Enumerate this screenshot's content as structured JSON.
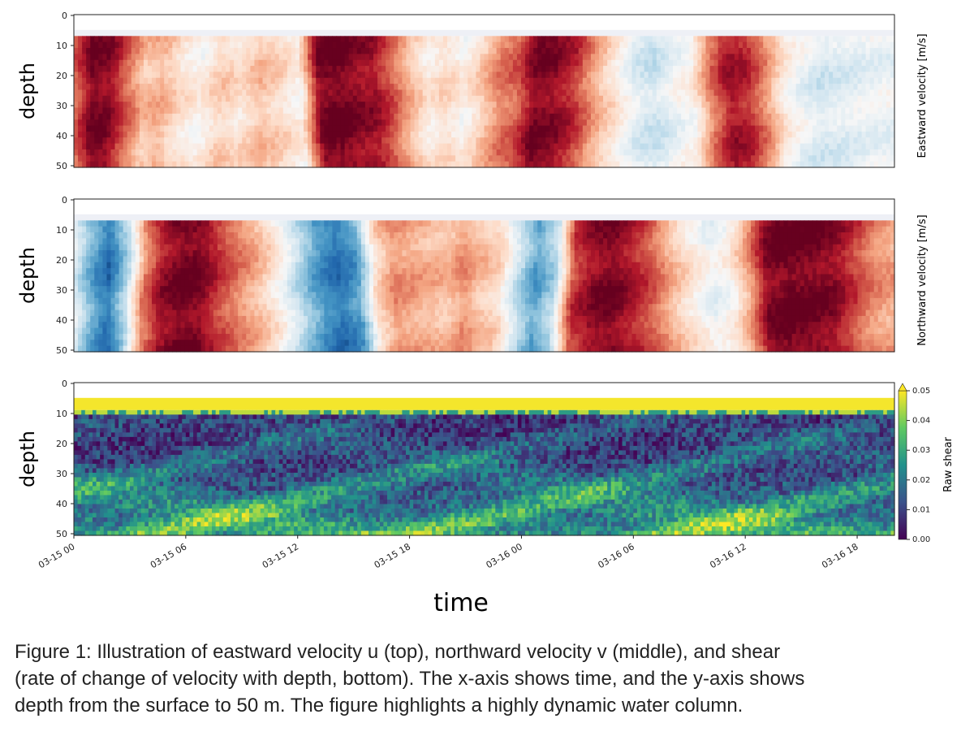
{
  "chart_data": [
    {
      "type": "heatmap",
      "panel": "top",
      "ylabel": "depth",
      "colorbar_label": "Eastward velocity [m/s]",
      "colormap": "RdBu_r",
      "yticks": [
        0,
        10,
        20,
        30,
        40,
        50
      ],
      "ylim": [
        0,
        50
      ],
      "data_depth_range": [
        7,
        51
      ],
      "x_range_hours": [
        0,
        44
      ],
      "color_scale": [
        -1,
        1
      ],
      "time_profile": [
        [
          0,
          0.55
        ],
        [
          1,
          0.95
        ],
        [
          2,
          0.92
        ],
        [
          3,
          0.6
        ],
        [
          4,
          0.3
        ],
        [
          5,
          0.35
        ],
        [
          6,
          0.15
        ],
        [
          7,
          0.05
        ],
        [
          8,
          0.25
        ],
        [
          9,
          0.15
        ],
        [
          10,
          0.3
        ],
        [
          11,
          0.2
        ],
        [
          12,
          0.05
        ],
        [
          13,
          0.95
        ],
        [
          14,
          0.98
        ],
        [
          15,
          0.9
        ],
        [
          16,
          0.85
        ],
        [
          17,
          0.6
        ],
        [
          18,
          0.3
        ],
        [
          19,
          0.1
        ],
        [
          20,
          0.2
        ],
        [
          21,
          0.05
        ],
        [
          22,
          0.25
        ],
        [
          23,
          0.5
        ],
        [
          24,
          0.6
        ],
        [
          25,
          0.95
        ],
        [
          26,
          0.9
        ],
        [
          27,
          0.75
        ],
        [
          28,
          0.4
        ],
        [
          29,
          0.15
        ],
        [
          30,
          -0.1
        ],
        [
          31,
          -0.2
        ],
        [
          32,
          -0.05
        ],
        [
          33,
          0.05
        ],
        [
          34,
          0.55
        ],
        [
          35,
          0.85
        ],
        [
          36,
          0.75
        ],
        [
          37,
          0.45
        ],
        [
          38,
          0.1
        ],
        [
          39,
          -0.05
        ],
        [
          40,
          -0.15
        ],
        [
          41,
          -0.12
        ],
        [
          42,
          -0.1
        ],
        [
          43,
          -0.05
        ],
        [
          44,
          -0.05
        ]
      ]
    },
    {
      "type": "heatmap",
      "panel": "middle",
      "ylabel": "depth",
      "colorbar_label": "Northward velocity [m/s]",
      "colormap": "RdBu_r",
      "yticks": [
        0,
        10,
        20,
        30,
        40,
        50
      ],
      "ylim": [
        0,
        50
      ],
      "data_depth_range": [
        7,
        51
      ],
      "x_range_hours": [
        0,
        44
      ],
      "color_scale": [
        -1,
        1
      ],
      "time_profile": [
        [
          0,
          -0.1
        ],
        [
          1,
          -0.5
        ],
        [
          2,
          -0.75
        ],
        [
          3,
          -0.3
        ],
        [
          4,
          0.5
        ],
        [
          5,
          0.85
        ],
        [
          6,
          0.98
        ],
        [
          7,
          0.95
        ],
        [
          8,
          0.7
        ],
        [
          9,
          0.5
        ],
        [
          10,
          0.3
        ],
        [
          11,
          0.05
        ],
        [
          12,
          -0.3
        ],
        [
          13,
          -0.6
        ],
        [
          14,
          -0.75
        ],
        [
          15,
          -0.55
        ],
        [
          16,
          0.2
        ],
        [
          17,
          0.45
        ],
        [
          18,
          0.4
        ],
        [
          19,
          0.35
        ],
        [
          20,
          0.3
        ],
        [
          21,
          0.45
        ],
        [
          22,
          0.3
        ],
        [
          23,
          0.2
        ],
        [
          24,
          -0.2
        ],
        [
          25,
          -0.55
        ],
        [
          26,
          -0.3
        ],
        [
          27,
          0.7
        ],
        [
          28,
          0.9
        ],
        [
          29,
          0.95
        ],
        [
          30,
          0.8
        ],
        [
          31,
          0.6
        ],
        [
          32,
          0.3
        ],
        [
          33,
          0.1
        ],
        [
          34,
          -0.05
        ],
        [
          35,
          0.05
        ],
        [
          36,
          0.4
        ],
        [
          37,
          0.92
        ],
        [
          38,
          0.98
        ],
        [
          39,
          0.98
        ],
        [
          40,
          0.95
        ],
        [
          41,
          0.9
        ],
        [
          42,
          0.7
        ],
        [
          43,
          0.5
        ],
        [
          44,
          0.4
        ]
      ]
    },
    {
      "type": "heatmap",
      "panel": "bottom",
      "ylabel": "depth",
      "colorbar_label": "Raw shear",
      "colormap": "viridis",
      "yticks": [
        0,
        10,
        20,
        30,
        40,
        50
      ],
      "ylim": [
        0,
        50
      ],
      "surface_band_depth": [
        5,
        9
      ],
      "data_depth_range": [
        9,
        51
      ],
      "x_range_hours": [
        0,
        44
      ],
      "colorbar_ticks": [
        "0.00",
        "0.01",
        "0.02",
        "0.03",
        "0.04",
        "0.05"
      ],
      "color_scale": [
        0,
        0.05
      ],
      "xticks": [
        "03-15 00",
        "03-15 06",
        "03-15 12",
        "03-15 18",
        "03-16 00",
        "03-16 06",
        "03-16 12",
        "03-16 18"
      ],
      "xtick_hours": [
        0,
        6,
        12,
        18,
        24,
        30,
        36,
        42
      ]
    }
  ],
  "xlabel": "time",
  "caption": {
    "line1": "Figure 1: Illustration of eastward velocity u (top), northward velocity v (middle), and shear",
    "line2": "(rate of change of velocity with depth, bottom). The x-axis shows time, and the y-axis shows",
    "line3": "depth from the surface to 50 m. The figure highlights a highly dynamic water column."
  }
}
